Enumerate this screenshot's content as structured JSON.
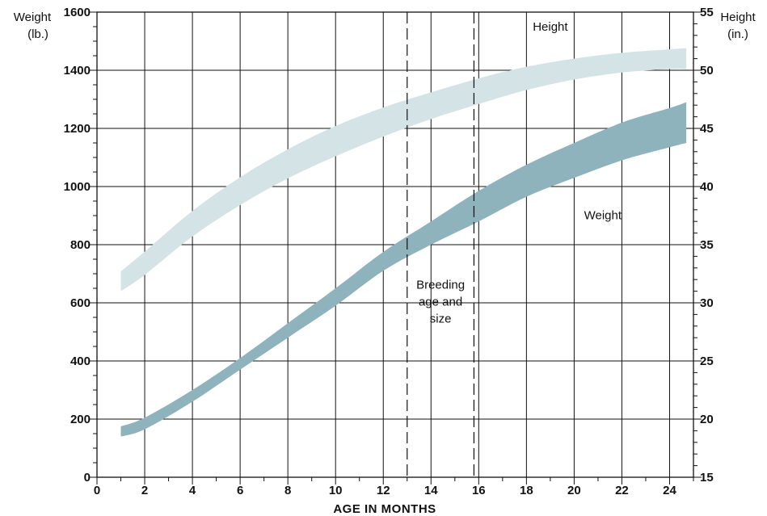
{
  "chart_data": {
    "type": "area",
    "xlabel": "AGE IN MONTHS",
    "ylabel_left": [
      "Weight",
      "(lb.)"
    ],
    "ylabel_right": [
      "Height",
      "(in.)"
    ],
    "xlim": [
      0,
      25
    ],
    "ylim_left": [
      0,
      1600
    ],
    "ylim_right": [
      15,
      55
    ],
    "x_ticks": [
      0,
      2,
      4,
      6,
      8,
      10,
      12,
      14,
      16,
      18,
      20,
      22,
      24
    ],
    "y_ticks_left": [
      0,
      200,
      400,
      600,
      800,
      1000,
      1200,
      1400,
      1600
    ],
    "y_ticks_right": [
      15,
      20,
      25,
      30,
      35,
      40,
      45,
      50,
      55
    ],
    "grid": true,
    "series": [
      {
        "name": "Height",
        "axis": "right",
        "color": "#d3e3e6",
        "x": [
          1,
          2,
          4,
          6,
          8,
          10,
          12,
          14,
          16,
          18,
          20,
          22,
          24,
          24.7
        ],
        "upper": [
          32.7,
          34.4,
          37.9,
          40.8,
          43.2,
          45.2,
          46.8,
          48.1,
          49.3,
          50.3,
          51.0,
          51.5,
          51.8,
          51.9
        ],
        "lower": [
          31.0,
          32.4,
          35.7,
          38.4,
          40.7,
          42.6,
          44.3,
          45.8,
          47.1,
          48.3,
          49.2,
          49.8,
          50.1,
          50.1
        ]
      },
      {
        "name": "Weight",
        "axis": "left",
        "color": "#8fb3bc",
        "x": [
          1,
          2,
          4,
          6,
          8,
          10,
          12,
          14,
          16,
          18,
          20,
          22,
          24,
          24.7
        ],
        "upper": [
          175,
          205,
          300,
          410,
          530,
          650,
          775,
          880,
          985,
          1075,
          1150,
          1220,
          1270,
          1290
        ],
        "lower": [
          140,
          165,
          260,
          370,
          480,
          590,
          710,
          800,
          880,
          965,
          1030,
          1090,
          1135,
          1150
        ]
      }
    ],
    "vlines": [
      13,
      15.8
    ],
    "vline_style": "dashed",
    "annotations": [
      {
        "text": [
          "Breeding",
          "age and",
          "size"
        ],
        "x": 14.4,
        "y": 31.2
      }
    ],
    "series_labels": [
      {
        "series": "Height",
        "text": "Height",
        "x": 19.0,
        "y": 53.4
      },
      {
        "series": "Weight",
        "text": "Weight",
        "x": 21.2,
        "y": 37.2
      }
    ]
  }
}
